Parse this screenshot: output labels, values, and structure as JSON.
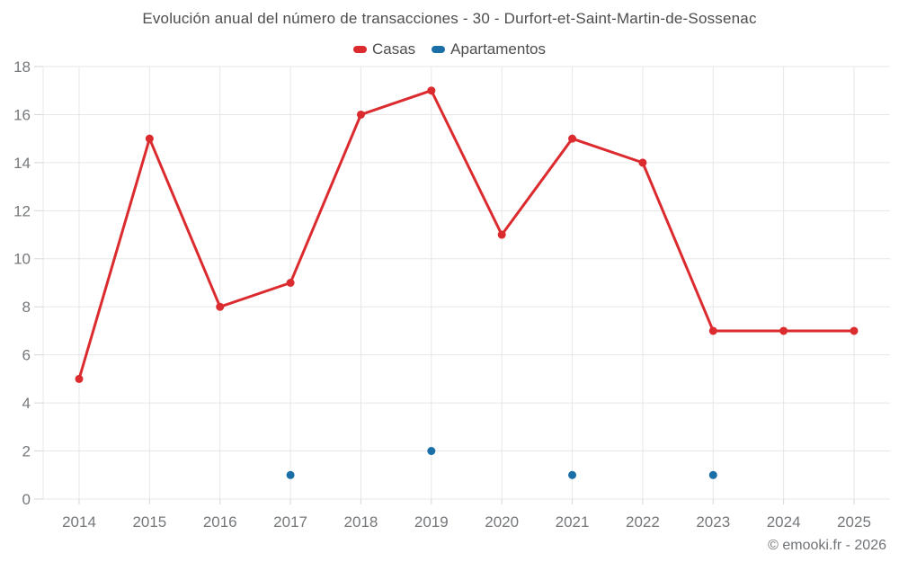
{
  "header": {
    "title": "Evolución anual del número de transacciones - 30 - Durfort-et-Saint-Martin-de-Sossenac"
  },
  "legend": {
    "items": [
      {
        "label": "Casas",
        "color": "#db2b2e"
      },
      {
        "label": "Apartamentos",
        "color": "#1a70a6"
      }
    ]
  },
  "footer": {
    "copyright": "© emooki.fr - 2026"
  },
  "colors": {
    "casas": "#db2b2e",
    "apartamentos": "#1a70a6",
    "grid": "#e7e7e7",
    "axis": "#d6d6d6",
    "axis_text": "#75787b",
    "title_text": "#4d4d4d"
  },
  "chart_data": {
    "type": "line",
    "title": "Evolución anual del número de transacciones - 30 - Durfort-et-Saint-Martin-de-Sossenac",
    "categories": [
      "2014",
      "2015",
      "2016",
      "2017",
      "2018",
      "2019",
      "2020",
      "2021",
      "2022",
      "2023",
      "2024",
      "2025"
    ],
    "series": [
      {
        "name": "Casas",
        "type": "line",
        "color": "#db2b2e",
        "values": [
          5,
          15,
          8,
          9,
          16,
          17,
          11,
          15,
          14,
          7,
          7,
          7
        ]
      },
      {
        "name": "Apartamentos",
        "type": "scatter",
        "color": "#1a70a6",
        "values": [
          null,
          null,
          null,
          1,
          null,
          2,
          null,
          1,
          null,
          1,
          null,
          null
        ]
      }
    ],
    "xlabel": "",
    "ylabel": "",
    "ylim": [
      0,
      18
    ],
    "ytick_step": 2,
    "grid": true,
    "legend_position": "top"
  }
}
